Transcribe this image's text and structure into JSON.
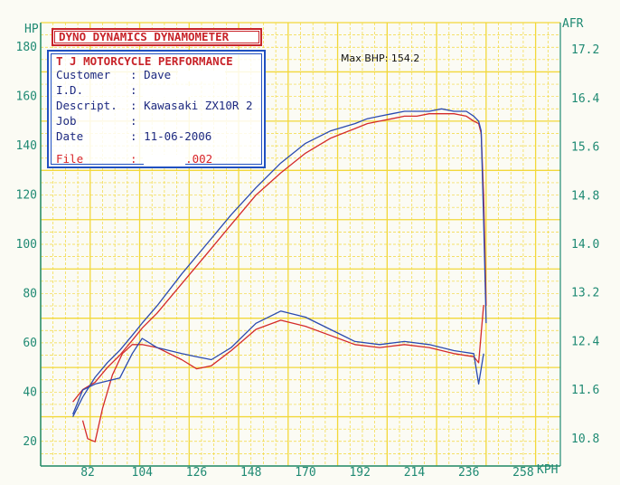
{
  "header": {
    "title": "DYNO DYNAMICS DYNAMOMETER",
    "company": "T J MOTORCYCLE PERFORMANCE",
    "max_bhp": "Max BHP: 154.2"
  },
  "info": {
    "customer_label": "Customer",
    "customer_value": "Dave",
    "id_label": "I.D.",
    "id_value": "",
    "descript_label": "Descript.",
    "descript_value": "Kawasaki ZX10R 2",
    "job_label": "Job",
    "job_value": "",
    "date_label": "Date",
    "date_value": "11-06-2006",
    "file_label": "File",
    "file_value": ".002",
    "separator": ":"
  },
  "colors": {
    "grid": "#f2d83a",
    "axis_text": "#1f8a73",
    "run_red": "#d42a2a",
    "run_blue": "#2a4ab0",
    "title_red": "#c8242a",
    "box_blue": "#2050c0"
  },
  "chart_data": {
    "type": "line",
    "title": "Max BHP: 154.2",
    "xlabel": "KPH",
    "ylabel_left": "HP",
    "ylabel_right": "AFR",
    "xlim": [
      63,
      273
    ],
    "ylim_left": [
      10,
      190
    ],
    "ylim_right": [
      10.35,
      17.65
    ],
    "x_ticks": [
      "82",
      "104",
      "126",
      "148",
      "170",
      "192",
      "214",
      "236",
      "258"
    ],
    "x_tick_values": [
      82,
      104,
      126,
      148,
      170,
      192,
      214,
      236,
      258
    ],
    "y_left_ticks": [
      "20",
      "40",
      "60",
      "80",
      "100",
      "120",
      "140",
      "160",
      "180"
    ],
    "y_left_tick_values": [
      20,
      40,
      60,
      80,
      100,
      120,
      140,
      160,
      180
    ],
    "y_right_ticks": [
      "10.8",
      "11.6",
      "12.4",
      "13.2",
      "14.0",
      "14.8",
      "15.6",
      "16.4",
      "17.2"
    ],
    "y_right_tick_values": [
      10.8,
      11.6,
      12.4,
      13.2,
      14.0,
      14.8,
      15.6,
      16.4,
      17.2
    ],
    "grid": true,
    "series": [
      {
        "name": "",
        "kind": "power",
        "color": "#d42a2a",
        "x": [
          76,
          80,
          85,
          90,
          95,
          100,
          104,
          110,
          120,
          130,
          140,
          150,
          160,
          170,
          180,
          190,
          195,
          200,
          205,
          210,
          215,
          220,
          225,
          230,
          235,
          238,
          240,
          241,
          242,
          243
        ],
        "y": [
          36,
          41,
          44,
          50,
          55,
          61,
          66,
          72,
          84,
          96,
          108,
          120,
          129,
          137,
          143,
          147,
          149,
          150,
          151,
          152,
          152,
          153,
          153,
          153,
          152,
          150,
          149,
          145,
          120,
          75
        ]
      },
      {
        "name": "",
        "kind": "power",
        "color": "#2a4ab0",
        "x": [
          76,
          80,
          85,
          90,
          95,
          100,
          104,
          110,
          120,
          130,
          140,
          150,
          160,
          170,
          180,
          190,
          195,
          200,
          205,
          210,
          215,
          220,
          225,
          230,
          235,
          238,
          240,
          241,
          242,
          243
        ],
        "y": [
          30,
          38,
          46,
          52,
          57,
          63,
          68,
          75,
          88,
          100,
          112,
          123,
          133,
          141,
          146,
          149,
          151,
          152,
          153,
          154,
          154,
          154,
          155,
          154,
          154,
          152,
          150,
          146,
          110,
          68
        ]
      },
      {
        "name": "",
        "kind": "afr",
        "color": "#d42a2a",
        "x": [
          80,
          82,
          85,
          88,
          92,
          96,
          100,
          104,
          110,
          120,
          126,
          132,
          140,
          150,
          160,
          170,
          180,
          190,
          200,
          210,
          220,
          230,
          238,
          240,
          242
        ],
        "y": [
          11.1,
          10.8,
          10.75,
          11.3,
          11.85,
          12.2,
          12.35,
          12.35,
          12.3,
          12.1,
          11.95,
          12.0,
          12.25,
          12.6,
          12.75,
          12.65,
          12.5,
          12.35,
          12.3,
          12.35,
          12.3,
          12.2,
          12.15,
          12.05,
          13.0
        ]
      },
      {
        "name": "",
        "kind": "afr",
        "color": "#2a4ab0",
        "x": [
          76,
          80,
          85,
          90,
          95,
          100,
          104,
          110,
          120,
          126,
          132,
          140,
          150,
          160,
          170,
          180,
          190,
          200,
          210,
          220,
          230,
          238,
          240,
          242
        ],
        "y": [
          11.2,
          11.6,
          11.7,
          11.75,
          11.8,
          12.2,
          12.45,
          12.3,
          12.2,
          12.15,
          12.1,
          12.3,
          12.7,
          12.9,
          12.8,
          12.6,
          12.4,
          12.35,
          12.4,
          12.35,
          12.25,
          12.2,
          11.7,
          12.2
        ]
      }
    ]
  }
}
